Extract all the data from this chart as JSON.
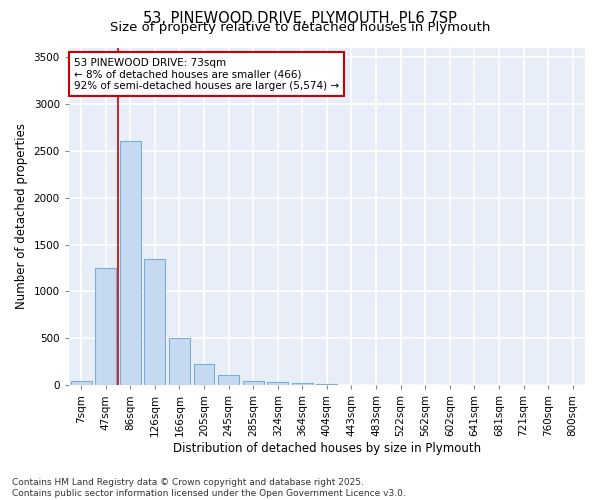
{
  "title1": "53, PINEWOOD DRIVE, PLYMOUTH, PL6 7SP",
  "title2": "Size of property relative to detached houses in Plymouth",
  "xlabel": "Distribution of detached houses by size in Plymouth",
  "ylabel": "Number of detached properties",
  "categories": [
    "7sqm",
    "47sqm",
    "86sqm",
    "126sqm",
    "166sqm",
    "205sqm",
    "245sqm",
    "285sqm",
    "324sqm",
    "364sqm",
    "404sqm",
    "443sqm",
    "483sqm",
    "522sqm",
    "562sqm",
    "602sqm",
    "641sqm",
    "681sqm",
    "721sqm",
    "760sqm",
    "800sqm"
  ],
  "values": [
    50,
    1250,
    2600,
    1350,
    500,
    230,
    110,
    50,
    40,
    25,
    10,
    5,
    2,
    2,
    1,
    1,
    0,
    0,
    0,
    0,
    0
  ],
  "bar_color": "#c5d9f0",
  "bar_edge_color": "#7bafd4",
  "bar_linewidth": 0.8,
  "vline_x_index": 1.5,
  "vline_color": "#cc0000",
  "vline_linewidth": 1.2,
  "annotation_text": "53 PINEWOOD DRIVE: 73sqm\n← 8% of detached houses are smaller (466)\n92% of semi-detached houses are larger (5,574) →",
  "annotation_box_color": "white",
  "annotation_box_edge": "#cc0000",
  "ylim": [
    0,
    3600
  ],
  "yticks": [
    0,
    500,
    1000,
    1500,
    2000,
    2500,
    3000,
    3500
  ],
  "bg_color": "#e8eef8",
  "grid_color": "white",
  "footer1": "Contains HM Land Registry data © Crown copyright and database right 2025.",
  "footer2": "Contains public sector information licensed under the Open Government Licence v3.0.",
  "title_fontsize": 10.5,
  "subtitle_fontsize": 9.5,
  "axis_label_fontsize": 8.5,
  "tick_fontsize": 7.5,
  "annotation_fontsize": 7.5,
  "footer_fontsize": 6.5
}
